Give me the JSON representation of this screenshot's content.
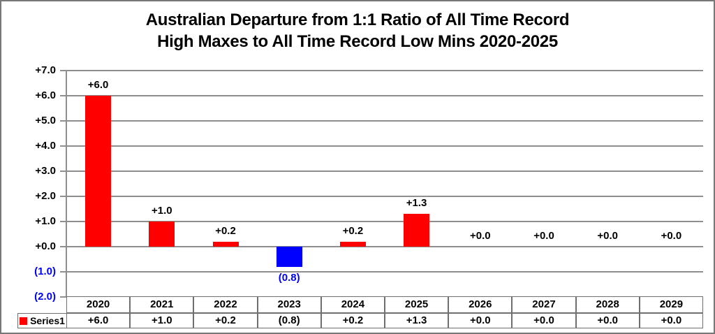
{
  "title": {
    "line1": "Australian Departure from 1:1 Ratio of All Time Record",
    "line2": "High Maxes to All Time Record Low Mins 2020-2025"
  },
  "colors": {
    "bar_positive": "#FF0000",
    "bar_negative": "#0000FF",
    "negative_text": "#0000FF",
    "positive_text": "#000000",
    "gridline": "#8f8f8f",
    "table_border": "#6f6f6f",
    "chart_border": "#777777",
    "background": "#ffffff"
  },
  "chart_data": {
    "type": "bar",
    "title": "Australian Departure from 1:1 Ratio of All Time Record High Maxes to All Time Record Low Mins 2020-2025",
    "categories": [
      "2020",
      "2021",
      "2022",
      "2023",
      "2024",
      "2025",
      "2026",
      "2027",
      "2028",
      "2029"
    ],
    "series": [
      {
        "name": "Series1",
        "values": [
          6.0,
          1.0,
          0.2,
          -0.8,
          0.2,
          1.3,
          0.0,
          0.0,
          0.0,
          0.0
        ]
      }
    ],
    "data_labels": [
      "+6.0",
      "+1.0",
      "+0.2",
      "(0.8)",
      "+0.2",
      "+1.3",
      "+0.0",
      "+0.0",
      "+0.0",
      "+0.0"
    ],
    "xlabel": "",
    "ylabel": "",
    "ylim": [
      -2,
      7
    ],
    "grid": true,
    "legend_position": "bottom-left-table",
    "y_axis": {
      "tick_values": [
        7,
        6,
        5,
        4,
        3,
        2,
        1,
        0,
        -1,
        -2
      ],
      "tick_labels": [
        "+7.0",
        "+6.0",
        "+5.0",
        "+4.0",
        "+3.0",
        "+2.0",
        "+1.0",
        "+0.0",
        "(1.0)",
        "(2.0)"
      ]
    }
  },
  "table": {
    "row_header": "Series1",
    "columns": [
      "2020",
      "2021",
      "2022",
      "2023",
      "2024",
      "2025",
      "2026",
      "2027",
      "2028",
      "2029"
    ],
    "values": [
      "+6.0",
      "+1.0",
      "+0.2",
      "(0.8)",
      "+0.2",
      "+1.3",
      "+0.0",
      "+0.0",
      "+0.0",
      "+0.0"
    ]
  }
}
